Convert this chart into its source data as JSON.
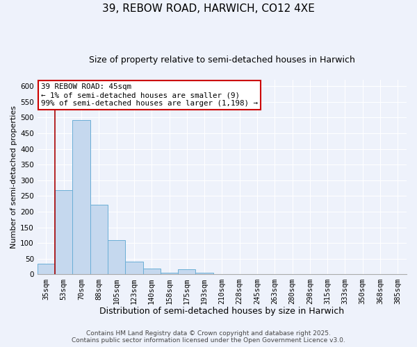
{
  "title": "39, REBOW ROAD, HARWICH, CO12 4XE",
  "subtitle": "Size of property relative to semi-detached houses in Harwich",
  "xlabel": "Distribution of semi-detached houses by size in Harwich",
  "ylabel": "Number of semi-detached properties",
  "bar_labels": [
    "35sqm",
    "53sqm",
    "70sqm",
    "88sqm",
    "105sqm",
    "123sqm",
    "140sqm",
    "158sqm",
    "175sqm",
    "193sqm",
    "210sqm",
    "228sqm",
    "245sqm",
    "263sqm",
    "280sqm",
    "298sqm",
    "315sqm",
    "333sqm",
    "350sqm",
    "368sqm",
    "385sqm"
  ],
  "bar_values": [
    35,
    268,
    492,
    223,
    109,
    40,
    18,
    5,
    17,
    5,
    1,
    0,
    0,
    0,
    0,
    0,
    0,
    0,
    0,
    0,
    0
  ],
  "bar_color": "#c5d8ee",
  "bar_edge_color": "#6aaed6",
  "annotation_text": "39 REBOW ROAD: 45sqm\n← 1% of semi-detached houses are smaller (9)\n99% of semi-detached houses are larger (1,198) →",
  "annotation_box_color": "#ffffff",
  "annotation_box_edge_color": "#cc0000",
  "property_line_color": "#aa0000",
  "ylim": [
    0,
    620
  ],
  "yticks": [
    0,
    50,
    100,
    150,
    200,
    250,
    300,
    350,
    400,
    450,
    500,
    550,
    600
  ],
  "bg_color": "#eef2fb",
  "grid_color": "#ffffff",
  "footer_line1": "Contains HM Land Registry data © Crown copyright and database right 2025.",
  "footer_line2": "Contains public sector information licensed under the Open Government Licence v3.0.",
  "title_fontsize": 11,
  "subtitle_fontsize": 9,
  "xlabel_fontsize": 9,
  "ylabel_fontsize": 8,
  "tick_fontsize": 7.5,
  "footer_fontsize": 6.5,
  "annotation_fontsize": 7.8
}
